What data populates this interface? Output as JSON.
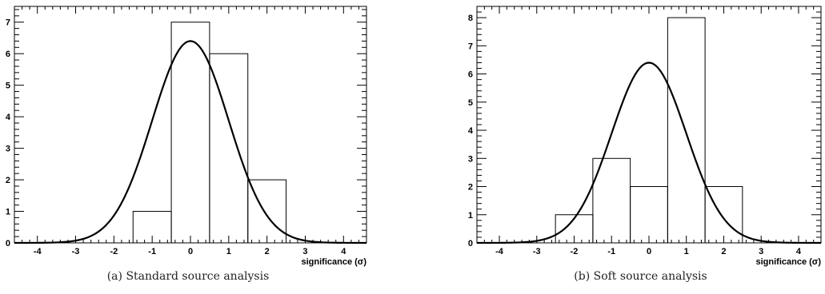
{
  "chart_data": [
    {
      "type": "histogram",
      "caption": "(a) Standard source analysis",
      "xlabel": "significance (σ)",
      "ylabel": "",
      "xlim": [
        -4.6,
        4.6
      ],
      "ylim": [
        0,
        7.5
      ],
      "xticks": [
        -4,
        -3,
        -2,
        -1,
        0,
        1,
        2,
        3,
        4
      ],
      "yticks": [
        0,
        1,
        2,
        3,
        4,
        5,
        6,
        7
      ],
      "bins": [
        {
          "x0": -1.5,
          "x1": -0.5,
          "count": 1
        },
        {
          "x0": -0.5,
          "x1": 0.5,
          "count": 7
        },
        {
          "x0": 0.5,
          "x1": 1.5,
          "count": 6
        },
        {
          "x0": 1.5,
          "x1": 2.5,
          "count": 2
        }
      ],
      "curve": {
        "type": "gaussian",
        "mean": 0,
        "sigma": 1,
        "peak": 6.4
      }
    },
    {
      "type": "histogram",
      "caption": "(b) Soft source analysis",
      "xlabel": "significance (σ)",
      "ylabel": "",
      "xlim": [
        -4.6,
        4.6
      ],
      "ylim": [
        0,
        8.4
      ],
      "xticks": [
        -4,
        -3,
        -2,
        -1,
        0,
        1,
        2,
        3,
        4
      ],
      "yticks": [
        0,
        1,
        2,
        3,
        4,
        5,
        6,
        7,
        8
      ],
      "bins": [
        {
          "x0": -2.5,
          "x1": -1.5,
          "count": 1
        },
        {
          "x0": -1.5,
          "x1": -0.5,
          "count": 3
        },
        {
          "x0": -0.5,
          "x1": 0.5,
          "count": 2
        },
        {
          "x0": 0.5,
          "x1": 1.5,
          "count": 8
        },
        {
          "x0": 1.5,
          "x1": 2.5,
          "count": 2
        }
      ],
      "curve": {
        "type": "gaussian",
        "mean": 0,
        "sigma": 1,
        "peak": 6.4
      }
    }
  ]
}
